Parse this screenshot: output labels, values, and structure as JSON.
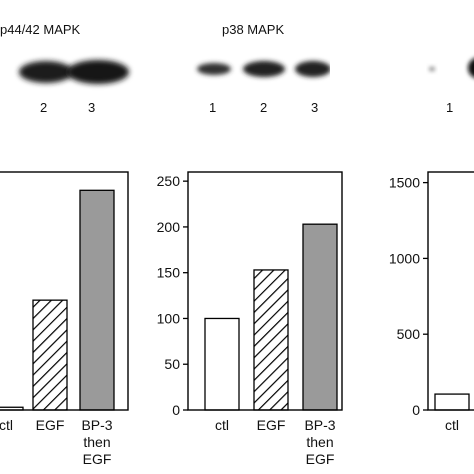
{
  "blots": [
    {
      "title": "p44/42 MAPK",
      "lanes": [
        "2",
        "3"
      ]
    },
    {
      "title": "p38 MAPK",
      "lanes": [
        "1",
        "2",
        "3"
      ]
    },
    {
      "title": "",
      "lanes": [
        "1"
      ]
    }
  ],
  "chart_data": [
    {
      "type": "bar",
      "categories": [
        "ctl",
        "EGF",
        "BP-3 then EGF"
      ],
      "category_lines": [
        [
          "ctl"
        ],
        [
          "EGF"
        ],
        [
          "BP-3",
          "then",
          "EGF"
        ]
      ],
      "values": [
        3,
        120,
        240
      ],
      "ylim": [
        0,
        260
      ],
      "yticks": [],
      "bar_styles": [
        "white",
        "hatched",
        "gray"
      ],
      "grid": false
    },
    {
      "type": "bar",
      "categories": [
        "ctl",
        "EGF",
        "BP-3 then EGF"
      ],
      "category_lines": [
        [
          "ctl"
        ],
        [
          "EGF"
        ],
        [
          "BP-3",
          "then",
          "EGF"
        ]
      ],
      "values": [
        100,
        153,
        203
      ],
      "ylim": [
        0,
        260
      ],
      "yticks": [
        "0",
        "50",
        "100",
        "150",
        "200",
        "250"
      ],
      "bar_styles": [
        "white",
        "hatched",
        "gray"
      ],
      "grid": false
    },
    {
      "type": "bar",
      "categories": [
        "ctl"
      ],
      "category_lines": [
        [
          "ctl"
        ]
      ],
      "values": [
        105
      ],
      "ylim": [
        0,
        1570
      ],
      "yticks": [
        "0",
        "500",
        "1000",
        "1500"
      ],
      "bar_styles": [
        "white"
      ],
      "grid": false
    }
  ],
  "colors": {
    "gray_bar": "#9a9a9a",
    "band": "#1a1a1a",
    "axis": "#000000"
  }
}
